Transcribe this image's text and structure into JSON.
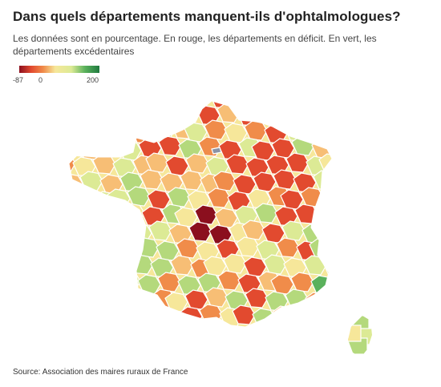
{
  "header": {
    "title": "Dans quels départements manquent-ils d'ophtalmologues?",
    "subtitle": "Les données sont en pourcentage. En rouge, les départements en déficit. En vert, les départements excédentaires"
  },
  "legend": {
    "min_label": "-87",
    "mid_label": "0",
    "max_label": "200",
    "min": -87,
    "mid": 0,
    "max": 200,
    "colors": {
      "deep_red": "#8b0f1e",
      "red": "#e24a2f",
      "orange": "#f08c4a",
      "light_orange": "#f7be75",
      "pale_yellow": "#f6e79a",
      "yellow_green": "#dcea95",
      "light_green": "#b4d97c",
      "green": "#5ab15c",
      "dark_green": "#1f7a3f"
    }
  },
  "source": "Source: Association des maires ruraux de France"
}
